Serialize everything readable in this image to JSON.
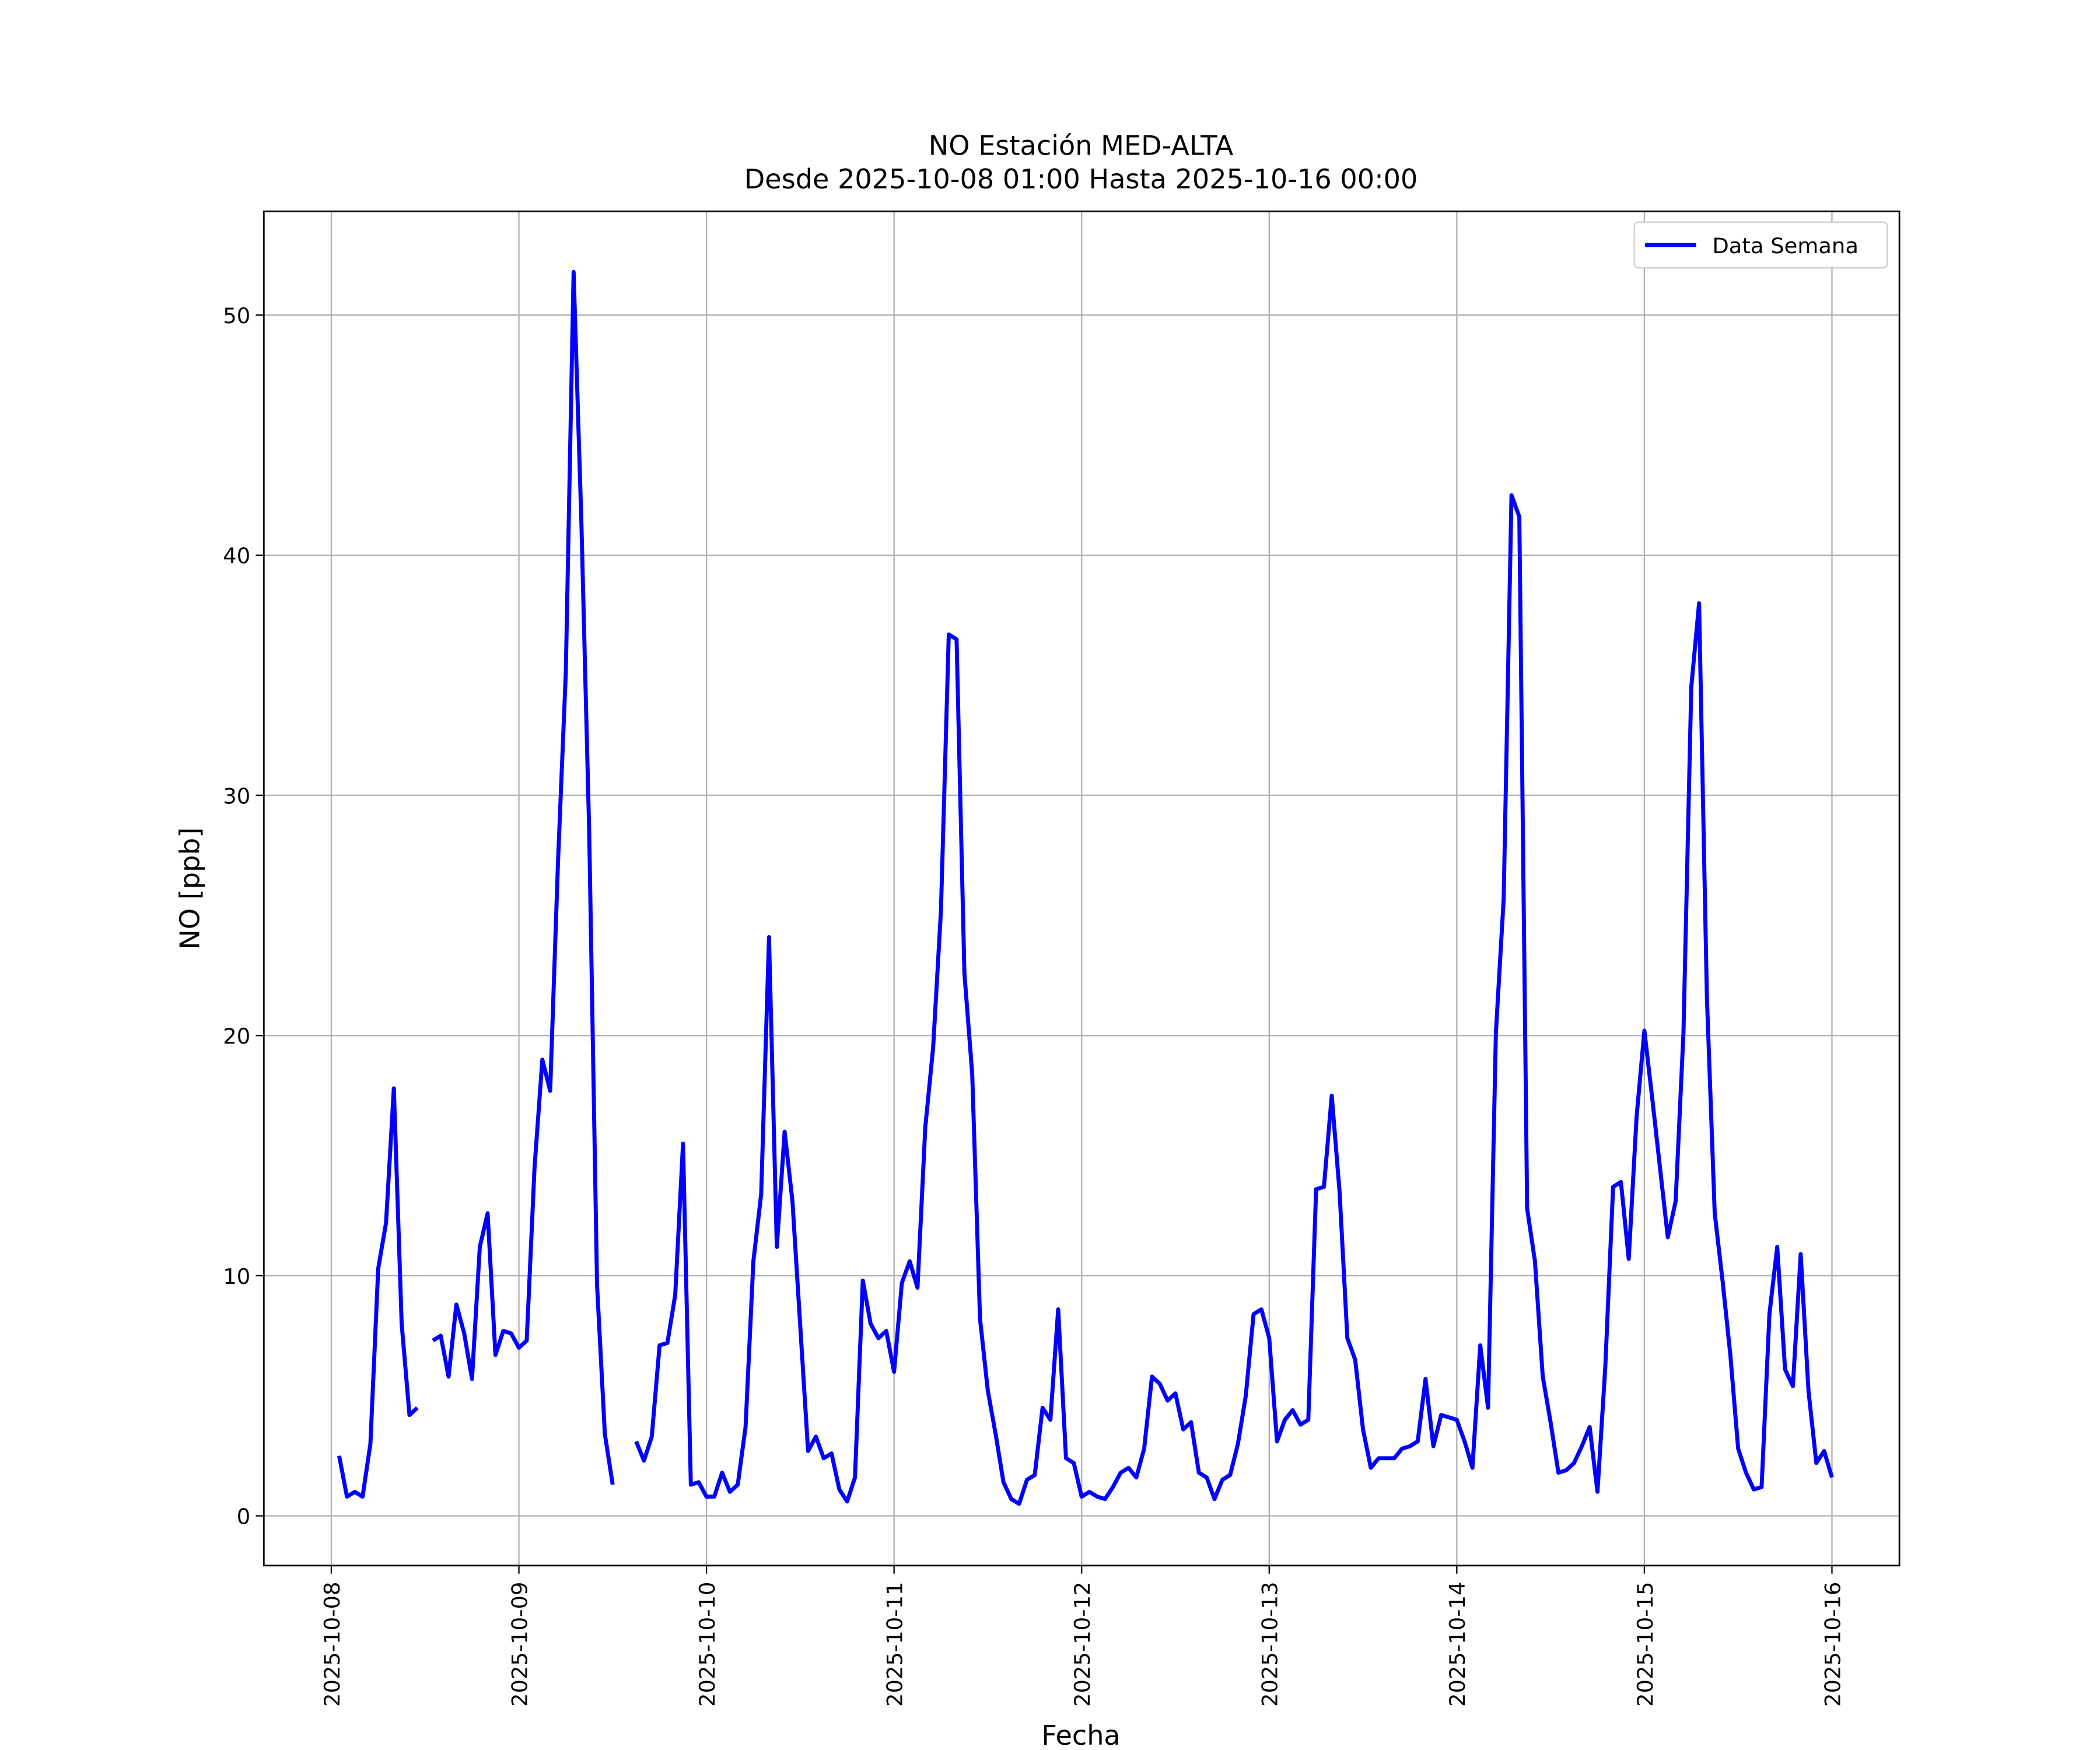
{
  "chart_data": {
    "type": "line",
    "title": "NO Estación MED-ALTA",
    "subtitle": "Desde 2025-10-08 01:00 Hasta 2025-10-16 00:00",
    "xlabel": "Fecha",
    "ylabel": "NO [ppb]",
    "x": [
      "2025-10-08 01:00",
      "2025-10-08 02:00",
      "2025-10-08 03:00",
      "2025-10-08 04:00",
      "2025-10-08 05:00",
      "2025-10-08 06:00",
      "2025-10-08 07:00",
      "2025-10-08 08:00",
      "2025-10-08 09:00",
      "2025-10-08 10:00",
      "2025-10-08 11:00",
      "2025-10-08 12:00",
      "2025-10-08 13:00",
      "2025-10-08 14:00",
      "2025-10-08 15:00",
      "2025-10-08 16:00",
      "2025-10-08 17:00",
      "2025-10-08 18:00",
      "2025-10-08 19:00",
      "2025-10-08 20:00",
      "2025-10-08 21:00",
      "2025-10-08 22:00",
      "2025-10-08 23:00",
      "2025-10-09 00:00",
      "2025-10-09 01:00",
      "2025-10-09 02:00",
      "2025-10-09 03:00",
      "2025-10-09 04:00",
      "2025-10-09 05:00",
      "2025-10-09 06:00",
      "2025-10-09 07:00",
      "2025-10-09 08:00",
      "2025-10-09 09:00",
      "2025-10-09 10:00",
      "2025-10-09 11:00",
      "2025-10-09 12:00",
      "2025-10-09 13:00",
      "2025-10-09 14:00",
      "2025-10-09 15:00",
      "2025-10-09 16:00",
      "2025-10-09 17:00",
      "2025-10-09 18:00",
      "2025-10-09 19:00",
      "2025-10-09 20:00",
      "2025-10-09 21:00",
      "2025-10-09 22:00",
      "2025-10-09 23:00",
      "2025-10-10 00:00",
      "2025-10-10 01:00",
      "2025-10-10 02:00",
      "2025-10-10 03:00",
      "2025-10-10 04:00",
      "2025-10-10 05:00",
      "2025-10-10 06:00",
      "2025-10-10 07:00",
      "2025-10-10 08:00",
      "2025-10-10 09:00",
      "2025-10-10 10:00",
      "2025-10-10 11:00",
      "2025-10-10 12:00",
      "2025-10-10 13:00",
      "2025-10-10 14:00",
      "2025-10-10 15:00",
      "2025-10-10 16:00",
      "2025-10-10 17:00",
      "2025-10-10 18:00",
      "2025-10-10 19:00",
      "2025-10-10 20:00",
      "2025-10-10 21:00",
      "2025-10-10 22:00",
      "2025-10-10 23:00",
      "2025-10-11 00:00",
      "2025-10-11 01:00",
      "2025-10-11 02:00",
      "2025-10-11 03:00",
      "2025-10-11 04:00",
      "2025-10-11 05:00",
      "2025-10-11 06:00",
      "2025-10-11 07:00",
      "2025-10-11 08:00",
      "2025-10-11 09:00",
      "2025-10-11 10:00",
      "2025-10-11 11:00",
      "2025-10-11 12:00",
      "2025-10-11 13:00",
      "2025-10-11 14:00",
      "2025-10-11 15:00",
      "2025-10-11 16:00",
      "2025-10-11 17:00",
      "2025-10-11 18:00",
      "2025-10-11 19:00",
      "2025-10-11 20:00",
      "2025-10-11 21:00",
      "2025-10-11 22:00",
      "2025-10-11 23:00",
      "2025-10-12 00:00",
      "2025-10-12 01:00",
      "2025-10-12 02:00",
      "2025-10-12 03:00",
      "2025-10-12 04:00",
      "2025-10-12 05:00",
      "2025-10-12 06:00",
      "2025-10-12 07:00",
      "2025-10-12 08:00",
      "2025-10-12 09:00",
      "2025-10-12 10:00",
      "2025-10-12 11:00",
      "2025-10-12 12:00",
      "2025-10-12 13:00",
      "2025-10-12 14:00",
      "2025-10-12 15:00",
      "2025-10-12 16:00",
      "2025-10-12 17:00",
      "2025-10-12 18:00",
      "2025-10-12 19:00",
      "2025-10-12 20:00",
      "2025-10-12 21:00",
      "2025-10-12 22:00",
      "2025-10-12 23:00",
      "2025-10-13 00:00",
      "2025-10-13 01:00",
      "2025-10-13 02:00",
      "2025-10-13 03:00",
      "2025-10-13 04:00",
      "2025-10-13 05:00",
      "2025-10-13 06:00",
      "2025-10-13 07:00",
      "2025-10-13 08:00",
      "2025-10-13 09:00",
      "2025-10-13 10:00",
      "2025-10-13 11:00",
      "2025-10-13 12:00",
      "2025-10-13 13:00",
      "2025-10-13 14:00",
      "2025-10-13 15:00",
      "2025-10-13 16:00",
      "2025-10-13 17:00",
      "2025-10-13 18:00",
      "2025-10-13 19:00",
      "2025-10-13 20:00",
      "2025-10-13 21:00",
      "2025-10-13 22:00",
      "2025-10-13 23:00",
      "2025-10-14 00:00",
      "2025-10-14 01:00",
      "2025-10-14 02:00",
      "2025-10-14 03:00",
      "2025-10-14 04:00",
      "2025-10-14 05:00",
      "2025-10-14 06:00",
      "2025-10-14 07:00",
      "2025-10-14 08:00",
      "2025-10-14 09:00",
      "2025-10-14 10:00",
      "2025-10-14 11:00",
      "2025-10-14 12:00",
      "2025-10-14 13:00",
      "2025-10-14 14:00",
      "2025-10-14 15:00",
      "2025-10-14 16:00",
      "2025-10-14 17:00",
      "2025-10-14 18:00",
      "2025-10-14 19:00",
      "2025-10-14 20:00",
      "2025-10-14 21:00",
      "2025-10-14 22:00",
      "2025-10-14 23:00",
      "2025-10-15 00:00",
      "2025-10-15 01:00",
      "2025-10-15 02:00",
      "2025-10-15 03:00",
      "2025-10-15 04:00",
      "2025-10-15 05:00",
      "2025-10-15 06:00",
      "2025-10-15 07:00",
      "2025-10-15 08:00",
      "2025-10-15 09:00",
      "2025-10-15 10:00",
      "2025-10-15 11:00",
      "2025-10-15 12:00",
      "2025-10-15 13:00",
      "2025-10-15 14:00",
      "2025-10-15 15:00",
      "2025-10-15 16:00",
      "2025-10-15 17:00",
      "2025-10-15 18:00",
      "2025-10-15 19:00",
      "2025-10-15 20:00",
      "2025-10-15 21:00",
      "2025-10-15 22:00",
      "2025-10-15 23:00",
      "2025-10-16 00:00"
    ],
    "series": [
      {
        "name": "Data Semana",
        "color": "#0000ff",
        "values": [
          2.5,
          0.8,
          1.0,
          0.8,
          3.0,
          10.3,
          12.2,
          17.8,
          8.0,
          4.2,
          4.5,
          null,
          7.3,
          7.5,
          5.8,
          8.8,
          7.6,
          5.7,
          11.2,
          12.6,
          6.7,
          7.7,
          7.6,
          7.0,
          7.3,
          14.5,
          19.0,
          17.7,
          27.2,
          35.1,
          51.8,
          41.3,
          28.4,
          9.6,
          3.4,
          1.3,
          null,
          null,
          3.1,
          2.3,
          3.3,
          7.1,
          7.2,
          9.2,
          15.5,
          1.3,
          1.4,
          0.8,
          0.8,
          1.8,
          1.0,
          1.3,
          3.7,
          10.6,
          13.4,
          24.1,
          11.2,
          16.0,
          13.1,
          7.9,
          2.7,
          3.3,
          2.4,
          2.6,
          1.1,
          0.6,
          1.6,
          9.8,
          8.0,
          7.4,
          7.7,
          6.0,
          9.7,
          10.6,
          9.5,
          16.2,
          19.5,
          25.2,
          36.7,
          36.5,
          22.6,
          18.4,
          8.2,
          5.2,
          3.4,
          1.4,
          0.7,
          0.5,
          1.5,
          1.7,
          4.5,
          4.0,
          8.6,
          2.4,
          2.2,
          0.8,
          1.0,
          0.8,
          0.7,
          1.2,
          1.8,
          2.0,
          1.6,
          2.8,
          5.8,
          5.5,
          4.8,
          5.1,
          3.6,
          3.9,
          1.8,
          1.6,
          0.7,
          1.5,
          1.7,
          3.0,
          5.0,
          8.4,
          8.6,
          7.4,
          3.1,
          4.0,
          4.4,
          3.8,
          4.0,
          13.6,
          13.7,
          17.5,
          13.5,
          7.4,
          6.5,
          3.6,
          2.0,
          2.4,
          2.4,
          2.4,
          2.8,
          2.9,
          3.1,
          5.7,
          2.9,
          4.2,
          4.1,
          4.0,
          3.1,
          2.0,
          7.1,
          4.5,
          20.1,
          25.7,
          42.5,
          41.6,
          12.8,
          10.6,
          5.8,
          3.9,
          1.8,
          1.9,
          2.2,
          2.9,
          3.7,
          1.0,
          6.2,
          13.7,
          13.9,
          10.7,
          16.6,
          20.2,
          17.4,
          14.5,
          11.6,
          13.1,
          20.1,
          34.5,
          38.0,
          21.6,
          12.6,
          9.8,
          6.7,
          2.8,
          1.8,
          1.1,
          1.2,
          8.4,
          11.2,
          6.1,
          5.4,
          10.9,
          5.2,
          2.2,
          2.7,
          1.6
        ]
      }
    ],
    "xlim": [
      "2025-10-07 15:22",
      "2025-10-16 08:38"
    ],
    "xticks": [
      "2025-10-08",
      "2025-10-09",
      "2025-10-10",
      "2025-10-11",
      "2025-10-12",
      "2025-10-13",
      "2025-10-14",
      "2025-10-15",
      "2025-10-16"
    ],
    "ylim": [
      -2.07,
      54.32
    ],
    "yticks": [
      0,
      10,
      20,
      30,
      40,
      50
    ],
    "grid": true,
    "legend": "upper right"
  }
}
